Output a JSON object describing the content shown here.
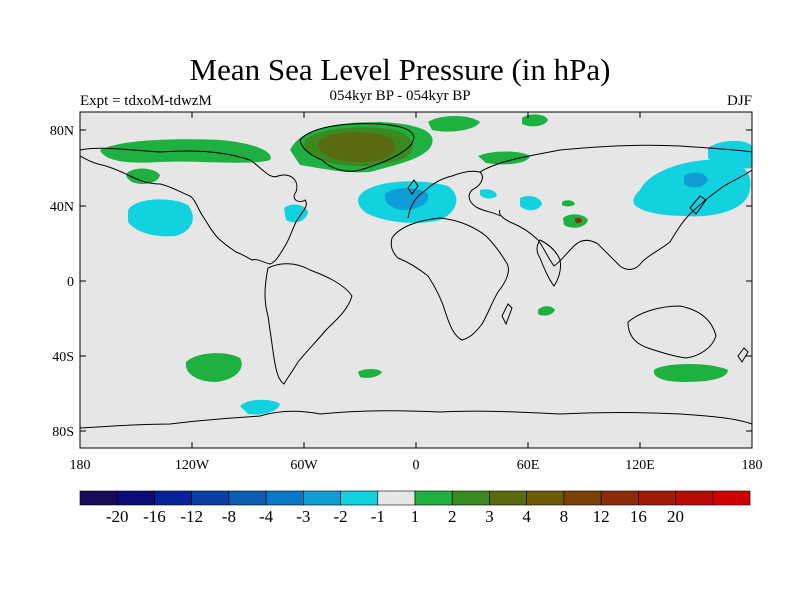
{
  "title": "Mean Sea Level Pressure (in hPa)",
  "subtitle": "054kyr BP - 054kyr BP",
  "experiment": "Expt = tdxoM-tdwzM",
  "season": "DJF",
  "lat_ticks": [
    "80N",
    "40N",
    "0",
    "40S",
    "80S"
  ],
  "lon_ticks": [
    "180",
    "120W",
    "60W",
    "0",
    "60E",
    "120E",
    "180"
  ],
  "colorbar": {
    "colors": [
      "#1a0a5a",
      "#0b0e78",
      "#08239a",
      "#0a3fa6",
      "#0c5cb4",
      "#0a78c6",
      "#0c9ed4",
      "#12d2e0",
      "#e6e6e6",
      "#1eb040",
      "#3a8a20",
      "#5a6a10",
      "#6e5a08",
      "#7a4208",
      "#8c2c08",
      "#a01a08",
      "#b80c08",
      "#d00000"
    ],
    "labels": [
      "-20",
      "-16",
      "-12",
      "-8",
      "-4",
      "-3",
      "-2",
      "-1",
      "1",
      "2",
      "3",
      "4",
      "8",
      "12",
      "16",
      "20"
    ]
  },
  "colors": {
    "background": "#e6e6e6",
    "cyan": "#12d2e0",
    "blue": "#0c9ed4",
    "green": "#1eb040",
    "darkgreen": "#3a8a20",
    "olive": "#5a6a10",
    "brown": "#7a4208"
  }
}
